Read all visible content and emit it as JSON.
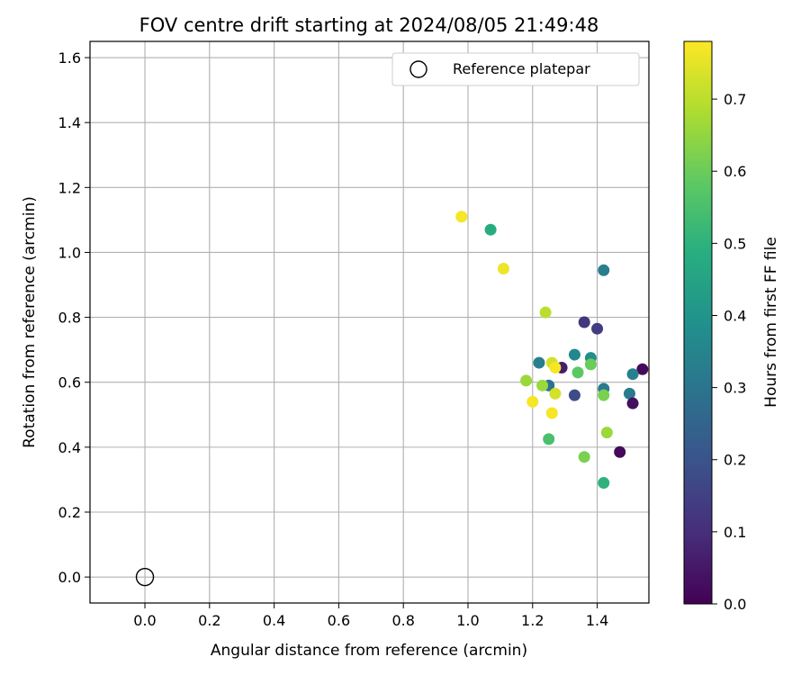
{
  "chart_data": {
    "type": "scatter",
    "title": "FOV centre drift starting at 2024/08/05 21:49:48",
    "xlabel": "Angular distance from reference (arcmin)",
    "ylabel": "Rotation from reference (arcmin)",
    "xlim": [
      -0.17,
      1.56
    ],
    "ylim": [
      -0.08,
      1.65
    ],
    "xticks": [
      0.0,
      0.2,
      0.4,
      0.6,
      0.8,
      1.0,
      1.2,
      1.4
    ],
    "yticks": [
      0.0,
      0.2,
      0.4,
      0.6,
      0.8,
      1.0,
      1.2,
      1.4,
      1.6
    ],
    "grid": true,
    "colormap": "viridis",
    "colorbar": {
      "label": "Hours from first FF file",
      "range": [
        0.0,
        0.78
      ],
      "ticks": [
        0.0,
        0.1,
        0.2,
        0.3,
        0.4,
        0.5,
        0.6,
        0.7
      ]
    },
    "legend": {
      "position": "top-right",
      "entries": [
        "Reference platepar"
      ]
    },
    "reference_point": {
      "x": 0.0,
      "y": 0.0
    },
    "points": [
      {
        "x": 0.98,
        "y": 1.11,
        "c": 0.77
      },
      {
        "x": 1.07,
        "y": 1.07,
        "c": 0.48
      },
      {
        "x": 1.11,
        "y": 0.95,
        "c": 0.76
      },
      {
        "x": 1.42,
        "y": 0.945,
        "c": 0.33
      },
      {
        "x": 1.24,
        "y": 0.815,
        "c": 0.7
      },
      {
        "x": 1.36,
        "y": 0.785,
        "c": 0.12
      },
      {
        "x": 1.4,
        "y": 0.765,
        "c": 0.14
      },
      {
        "x": 1.33,
        "y": 0.685,
        "c": 0.36
      },
      {
        "x": 1.38,
        "y": 0.675,
        "c": 0.38
      },
      {
        "x": 1.22,
        "y": 0.66,
        "c": 0.33
      },
      {
        "x": 1.26,
        "y": 0.66,
        "c": 0.73
      },
      {
        "x": 1.38,
        "y": 0.655,
        "c": 0.6
      },
      {
        "x": 1.29,
        "y": 0.645,
        "c": 0.06
      },
      {
        "x": 1.27,
        "y": 0.645,
        "c": 0.77
      },
      {
        "x": 1.54,
        "y": 0.64,
        "c": 0.02
      },
      {
        "x": 1.34,
        "y": 0.63,
        "c": 0.58
      },
      {
        "x": 1.51,
        "y": 0.625,
        "c": 0.34
      },
      {
        "x": 1.18,
        "y": 0.605,
        "c": 0.66
      },
      {
        "x": 1.25,
        "y": 0.59,
        "c": 0.3
      },
      {
        "x": 1.23,
        "y": 0.59,
        "c": 0.66
      },
      {
        "x": 1.42,
        "y": 0.58,
        "c": 0.32
      },
      {
        "x": 1.27,
        "y": 0.565,
        "c": 0.73
      },
      {
        "x": 1.42,
        "y": 0.56,
        "c": 0.62
      },
      {
        "x": 1.5,
        "y": 0.565,
        "c": 0.32
      },
      {
        "x": 1.33,
        "y": 0.56,
        "c": 0.18
      },
      {
        "x": 1.2,
        "y": 0.54,
        "c": 0.77
      },
      {
        "x": 1.51,
        "y": 0.535,
        "c": 0.03
      },
      {
        "x": 1.26,
        "y": 0.505,
        "c": 0.77
      },
      {
        "x": 1.43,
        "y": 0.445,
        "c": 0.66
      },
      {
        "x": 1.25,
        "y": 0.425,
        "c": 0.55
      },
      {
        "x": 1.47,
        "y": 0.385,
        "c": 0.02
      },
      {
        "x": 1.36,
        "y": 0.37,
        "c": 0.62
      },
      {
        "x": 1.42,
        "y": 0.29,
        "c": 0.5
      }
    ]
  }
}
